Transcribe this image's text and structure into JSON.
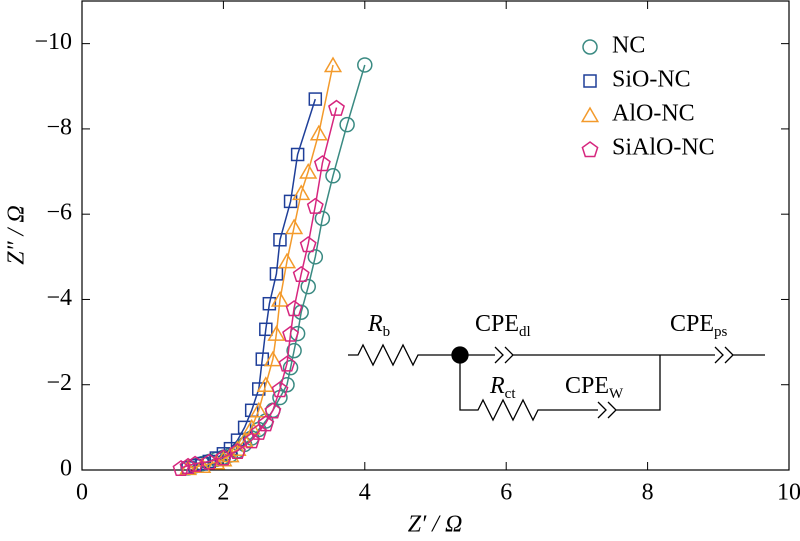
{
  "chart_data": {
    "type": "scatter",
    "xlabel": "Z′ / Ω",
    "ylabel": "Z″ / Ω",
    "xlim": [
      0,
      10
    ],
    "xticks": [
      0,
      2,
      4,
      6,
      8,
      10
    ],
    "ylim": [
      0,
      -11
    ],
    "yticks": [
      {
        "value": 0,
        "label": "0"
      },
      {
        "value": -2,
        "label": "−2"
      },
      {
        "value": -4,
        "label": "−4"
      },
      {
        "value": -6,
        "label": "−6"
      },
      {
        "value": -8,
        "label": "−8"
      },
      {
        "value": -10,
        "label": "−10"
      }
    ],
    "legend": "upper right",
    "series": [
      {
        "name": "NC",
        "color": "#3a8a82",
        "marker": "circle",
        "x": [
          1.5,
          1.6,
          1.7,
          1.8,
          1.9,
          2.0,
          2.1,
          2.2,
          2.3,
          2.4,
          2.5,
          2.6,
          2.7,
          2.8,
          2.9,
          2.95,
          3.0,
          3.05,
          3.1,
          3.2,
          3.3,
          3.4,
          3.55,
          3.75,
          4.0
        ],
        "y": [
          -0.05,
          -0.1,
          -0.15,
          -0.2,
          -0.25,
          -0.3,
          -0.35,
          -0.45,
          -0.6,
          -0.75,
          -0.95,
          -1.15,
          -1.4,
          -1.7,
          -2.0,
          -2.4,
          -2.8,
          -3.2,
          -3.7,
          -4.3,
          -5.0,
          -5.9,
          -6.9,
          -8.1,
          -9.5
        ]
      },
      {
        "name": "SiO-NC",
        "color": "#1f3f99",
        "marker": "square",
        "x": [
          1.5,
          1.6,
          1.7,
          1.8,
          1.9,
          2.0,
          2.1,
          2.2,
          2.3,
          2.4,
          2.5,
          2.55,
          2.6,
          2.65,
          2.75,
          2.8,
          2.95,
          3.05,
          3.3
        ],
        "y": [
          -0.05,
          -0.1,
          -0.15,
          -0.2,
          -0.28,
          -0.38,
          -0.5,
          -0.7,
          -1.0,
          -1.4,
          -1.9,
          -2.6,
          -3.3,
          -3.9,
          -4.6,
          -5.4,
          -6.3,
          -7.4,
          -8.7
        ]
      },
      {
        "name": "AlO-NC",
        "color": "#f39a2b",
        "marker": "triangle",
        "x": [
          1.5,
          1.7,
          1.9,
          2.0,
          2.1,
          2.2,
          2.3,
          2.4,
          2.5,
          2.6,
          2.7,
          2.75,
          2.8,
          2.9,
          3.0,
          3.1,
          3.2,
          3.35,
          3.55
        ],
        "y": [
          -0.05,
          -0.1,
          -0.18,
          -0.25,
          -0.35,
          -0.5,
          -0.7,
          -1.0,
          -1.4,
          -2.0,
          -2.6,
          -3.2,
          -4.0,
          -4.9,
          -5.7,
          -6.5,
          -7.0,
          -7.9,
          -9.5
        ]
      },
      {
        "name": "SiAlO-NC",
        "color": "#d6267e",
        "marker": "pentagon",
        "x": [
          1.4,
          1.5,
          1.6,
          1.8,
          2.0,
          2.2,
          2.4,
          2.5,
          2.6,
          2.7,
          2.8,
          2.9,
          2.95,
          3.0,
          3.1,
          3.2,
          3.3,
          3.4,
          3.6
        ],
        "y": [
          -0.05,
          -0.1,
          -0.15,
          -0.2,
          -0.3,
          -0.45,
          -0.7,
          -0.9,
          -1.1,
          -1.4,
          -1.9,
          -2.5,
          -3.2,
          -3.8,
          -4.6,
          -5.3,
          -6.2,
          -7.2,
          -8.5
        ]
      }
    ],
    "annotations": [
      {
        "main": "R",
        "sub": "b"
      },
      {
        "main": "CPE",
        "sub": "dl"
      },
      {
        "main": "R",
        "sub": "ct"
      },
      {
        "main": "CPE",
        "sub": "W"
      },
      {
        "main": "CPE",
        "sub": "ps"
      }
    ]
  }
}
